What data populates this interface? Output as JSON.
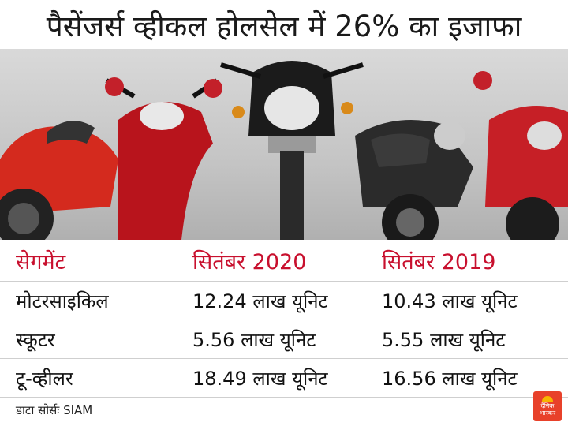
{
  "title": "पैसेंजर्स व्हीकल होलसेल में 26% का इजाफा",
  "table": {
    "headers": [
      "सेगमेंट",
      "सितंबर 2020",
      "सितंबर 2019"
    ],
    "rows": [
      [
        "मोटरसाइकिल",
        "12.24 लाख यूनिट",
        "10.43 लाख यूनिट"
      ],
      [
        "स्कूटर",
        "5.56 लाख यूनिट",
        "5.55 लाख यूनिट"
      ],
      [
        "टू-व्हीलर",
        "18.49 लाख यूनिट",
        "16.56 लाख यूनिट"
      ]
    ]
  },
  "source": "डाटा सोर्सः SIAM",
  "logo": {
    "line1": "दैनिक",
    "line2": "भास्कर"
  },
  "colors": {
    "header_text": "#c8102e",
    "logo_bg": "#e8412a",
    "logo_sun": "#f7b500"
  }
}
